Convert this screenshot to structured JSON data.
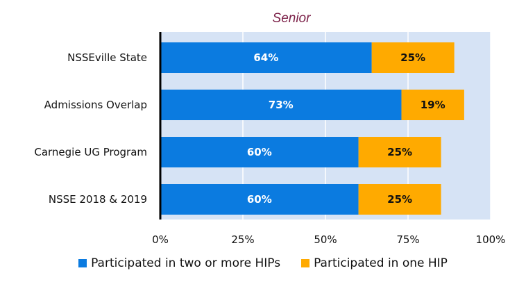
{
  "chart_data": {
    "type": "bar",
    "orientation": "horizontal",
    "stacked": true,
    "title": "Senior",
    "categories": [
      "NSSEville State",
      "Admissions Overlap",
      "Carnegie UG Program",
      "NSSE 2018 & 2019"
    ],
    "series": [
      {
        "name": "Participated in two or more HIPs",
        "values": [
          64,
          73,
          60,
          60
        ],
        "labels": [
          "64%",
          "73%",
          "60%",
          "60%"
        ],
        "color": "#0b7be0"
      },
      {
        "name": "Participated in one HIP",
        "values": [
          25,
          19,
          25,
          25
        ],
        "labels": [
          "25%",
          "19%",
          "25%",
          "25%"
        ],
        "color": "#ffaa00"
      }
    ],
    "xlim": [
      0,
      100
    ],
    "xticks": [
      "0%",
      "25%",
      "50%",
      "75%",
      "100%"
    ],
    "grid": true,
    "legend_position": "bottom",
    "plot_background": "#d6e3f5"
  }
}
